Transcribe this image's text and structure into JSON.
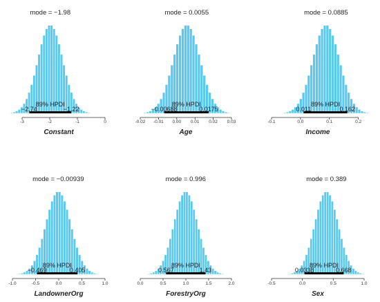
{
  "colors": {
    "bar_fill": "#5bc8ee",
    "bar_stroke": "#ffffff",
    "hpdi": "#000000",
    "axis": "#333333"
  },
  "chart_data": [
    {
      "type": "bar",
      "xlabel": "Constant",
      "mode_text": "mode = −1.98",
      "mode": -1.98,
      "hpdi_text": "89% HPDI",
      "hpdi": [
        -2.74,
        -1.22
      ],
      "hpdi_labels": [
        "−2.74",
        "−1.22"
      ],
      "xlim": [
        -3.35,
        0
      ],
      "ticks": [
        -3,
        -2,
        -1,
        0
      ],
      "tick_labels": [
        "-3",
        "-2",
        "-1",
        "0"
      ],
      "sd": 0.45
    },
    {
      "type": "bar",
      "xlabel": "Age",
      "mode_text": "mode = 0.0055",
      "mode": 0.0055,
      "hpdi_text": "89% HPDI",
      "hpdi": [
        -0.00688,
        0.0175
      ],
      "hpdi_labels": [
        "−0.00688",
        "0.0175"
      ],
      "xlim": [
        -0.02,
        0.03
      ],
      "ticks": [
        -0.02,
        -0.01,
        0,
        0.01,
        0.02,
        0.03
      ],
      "tick_labels": [
        "-0.02",
        "-0.01",
        "0.00",
        "0.01",
        "0.02",
        "0.03"
      ],
      "sd": 0.0074
    },
    {
      "type": "bar",
      "xlabel": "Income",
      "mode_text": "mode = 0.0885",
      "mode": 0.0885,
      "hpdi_text": "89% HPDI",
      "hpdi": [
        0.011,
        0.162
      ],
      "hpdi_labels": [
        "0.011",
        "0.162"
      ],
      "xlim": [
        -0.1,
        0.22
      ],
      "ticks": [
        -0.1,
        0,
        0.1,
        0.2
      ],
      "tick_labels": [
        "-0.1",
        "0.0",
        "0.1",
        "0.2"
      ],
      "sd": 0.046
    },
    {
      "type": "bar",
      "xlabel": "LandownerOrg",
      "mode_text": "mode = −0.00939",
      "mode": -0.00939,
      "hpdi_text": "89% HPDI",
      "hpdi": [
        -0.469,
        0.405
      ],
      "hpdi_labels": [
        "−0.469",
        "0.405"
      ],
      "xlim": [
        -1.0,
        1.0
      ],
      "ticks": [
        -1.0,
        -0.5,
        0,
        0.5,
        1.0
      ],
      "tick_labels": [
        "-1.0",
        "-0.5",
        "0.0",
        "0.5",
        "1.0"
      ],
      "sd": 0.27
    },
    {
      "type": "bar",
      "xlabel": "ForestryOrg",
      "mode_text": "mode = 0.996",
      "mode": 0.996,
      "hpdi_text": "89% HPDI",
      "hpdi": [
        0.567,
        1.43
      ],
      "hpdi_labels": [
        "0.567",
        "1.43"
      ],
      "xlim": [
        0,
        2.0
      ],
      "ticks": [
        0,
        0.5,
        1.0,
        1.5,
        2.0
      ],
      "tick_labels": [
        "0.0",
        "0.5",
        "1.0",
        "1.5",
        "2.0"
      ],
      "sd": 0.26
    },
    {
      "type": "bar",
      "xlabel": "Sex",
      "mode_text": "mode = 0.389",
      "mode": 0.389,
      "hpdi_text": "89% HPDI",
      "hpdi": [
        0.0338,
        0.668
      ],
      "hpdi_labels": [
        "0.0338",
        "0.668"
      ],
      "xlim": [
        -0.5,
        1.0
      ],
      "ticks": [
        -0.5,
        0,
        0.5,
        1.0
      ],
      "tick_labels": [
        "-0.5",
        "0.0",
        "0.5",
        "1.0"
      ],
      "sd": 0.19
    }
  ]
}
